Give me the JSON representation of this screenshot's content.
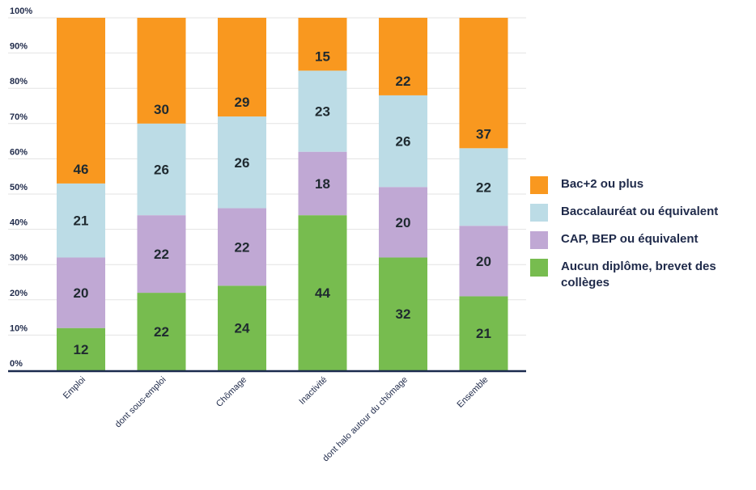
{
  "chart_data": {
    "type": "bar",
    "stacked": true,
    "title": "",
    "xlabel": "",
    "ylabel": "",
    "ylim": [
      0,
      100
    ],
    "yticks": [
      "0%",
      "10%",
      "20%",
      "30%",
      "40%",
      "50%",
      "60%",
      "70%",
      "80%",
      "90%",
      "100%"
    ],
    "categories": [
      "Emploi",
      "dont sous-emploi",
      "Chômage",
      "Inactivité",
      "dont halo autour du chômage",
      "Ensemble"
    ],
    "series": [
      {
        "name": "Aucun diplôme, brevet des collèges",
        "color": "#77bc4f",
        "values": [
          12,
          22,
          24,
          44,
          32,
          21
        ]
      },
      {
        "name": "CAP, BEP ou équivalent",
        "color": "#c0a8d4",
        "values": [
          20,
          22,
          22,
          18,
          20,
          20
        ]
      },
      {
        "name": "Baccalauréat ou équivalent",
        "color": "#bcdce6",
        "values": [
          21,
          26,
          26,
          23,
          26,
          22
        ]
      },
      {
        "name": "Bac+2 ou plus",
        "color": "#f9981f",
        "values": [
          46,
          30,
          29,
          15,
          22,
          37
        ]
      }
    ],
    "legend_order": [
      3,
      2,
      1,
      0
    ],
    "legend_position": "right",
    "grid": true
  }
}
